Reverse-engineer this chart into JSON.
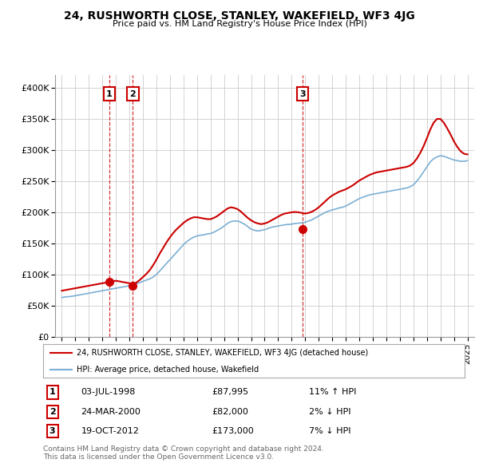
{
  "title": "24, RUSHWORTH CLOSE, STANLEY, WAKEFIELD, WF3 4JG",
  "subtitle": "Price paid vs. HM Land Registry's House Price Index (HPI)",
  "ylim": [
    0,
    420000
  ],
  "yticks": [
    0,
    50000,
    100000,
    150000,
    200000,
    250000,
    300000,
    350000,
    400000
  ],
  "ytick_labels": [
    "£0",
    "£50K",
    "£100K",
    "£150K",
    "£200K",
    "£250K",
    "£300K",
    "£350K",
    "£400K"
  ],
  "xlim_start": 1994.5,
  "xlim_end": 2025.5,
  "sales": [
    {
      "num": 1,
      "year": 1998.5,
      "price": 87995,
      "label": "03-JUL-1998",
      "price_str": "£87,995",
      "pct": "11% ↑ HPI"
    },
    {
      "num": 2,
      "year": 2000.25,
      "price": 82000,
      "label": "24-MAR-2000",
      "price_str": "£82,000",
      "pct": "2% ↓ HPI"
    },
    {
      "num": 3,
      "year": 2012.8,
      "price": 173000,
      "label": "19-OCT-2012",
      "price_str": "£173,000",
      "pct": "7% ↓ HPI"
    }
  ],
  "red_line_color": "#cc0000",
  "blue_line_color": "#7bafd4",
  "legend_label_red": "24, RUSHWORTH CLOSE, STANLEY, WAKEFIELD, WF3 4JG (detached house)",
  "legend_label_blue": "HPI: Average price, detached house, Wakefield",
  "footnote": "Contains HM Land Registry data © Crown copyright and database right 2024.\nThis data is licensed under the Open Government Licence v3.0.",
  "background_color": "#ffffff",
  "grid_color": "#cccccc",
  "hpi_years": [
    1995.0,
    1995.25,
    1995.5,
    1995.75,
    1996.0,
    1996.25,
    1996.5,
    1996.75,
    1997.0,
    1997.25,
    1997.5,
    1997.75,
    1998.0,
    1998.25,
    1998.5,
    1998.75,
    1999.0,
    1999.25,
    1999.5,
    1999.75,
    2000.0,
    2000.25,
    2000.5,
    2000.75,
    2001.0,
    2001.25,
    2001.5,
    2001.75,
    2002.0,
    2002.25,
    2002.5,
    2002.75,
    2003.0,
    2003.25,
    2003.5,
    2003.75,
    2004.0,
    2004.25,
    2004.5,
    2004.75,
    2005.0,
    2005.25,
    2005.5,
    2005.75,
    2006.0,
    2006.25,
    2006.5,
    2006.75,
    2007.0,
    2007.25,
    2007.5,
    2007.75,
    2008.0,
    2008.25,
    2008.5,
    2008.75,
    2009.0,
    2009.25,
    2009.5,
    2009.75,
    2010.0,
    2010.25,
    2010.5,
    2010.75,
    2011.0,
    2011.25,
    2011.5,
    2011.75,
    2012.0,
    2012.25,
    2012.5,
    2012.75,
    2013.0,
    2013.25,
    2013.5,
    2013.75,
    2014.0,
    2014.25,
    2014.5,
    2014.75,
    2015.0,
    2015.25,
    2015.5,
    2015.75,
    2016.0,
    2016.25,
    2016.5,
    2016.75,
    2017.0,
    2017.25,
    2017.5,
    2017.75,
    2018.0,
    2018.25,
    2018.5,
    2018.75,
    2019.0,
    2019.25,
    2019.5,
    2019.75,
    2020.0,
    2020.25,
    2020.5,
    2020.75,
    2021.0,
    2021.25,
    2021.5,
    2021.75,
    2022.0,
    2022.25,
    2022.5,
    2022.75,
    2023.0,
    2023.25,
    2023.5,
    2023.75,
    2024.0,
    2024.25,
    2024.5,
    2024.75,
    2025.0
  ],
  "hpi_values": [
    63000,
    64000,
    64500,
    65000,
    66000,
    67000,
    68000,
    69000,
    70000,
    71000,
    72000,
    73000,
    74000,
    75000,
    76000,
    77000,
    78000,
    79000,
    80000,
    81000,
    82000,
    83000,
    85000,
    87000,
    89000,
    91000,
    93000,
    96000,
    100000,
    106000,
    112000,
    118000,
    124000,
    130000,
    136000,
    142000,
    148000,
    153000,
    157000,
    160000,
    162000,
    163000,
    164000,
    165000,
    166000,
    168000,
    171000,
    174000,
    178000,
    182000,
    185000,
    186000,
    186000,
    184000,
    181000,
    177000,
    173000,
    171000,
    170000,
    171000,
    172000,
    174000,
    176000,
    177000,
    178000,
    179000,
    180000,
    180500,
    181000,
    182000,
    182500,
    183000,
    184000,
    186000,
    188000,
    191000,
    194000,
    197000,
    200000,
    202000,
    204000,
    205000,
    207000,
    208000,
    210000,
    213000,
    216000,
    219000,
    222000,
    224000,
    226000,
    228000,
    229000,
    230000,
    231000,
    232000,
    233000,
    234000,
    235000,
    236000,
    237000,
    238000,
    239000,
    241000,
    244000,
    250000,
    257000,
    265000,
    273000,
    281000,
    286000,
    289000,
    291000,
    290000,
    288000,
    286000,
    284000,
    283000,
    282000,
    282000,
    283000
  ],
  "price_line_years": [
    1995.0,
    1995.25,
    1995.5,
    1995.75,
    1996.0,
    1996.25,
    1996.5,
    1996.75,
    1997.0,
    1997.25,
    1997.5,
    1997.75,
    1998.0,
    1998.25,
    1998.5,
    1998.75,
    1999.0,
    1999.25,
    1999.5,
    1999.75,
    2000.0,
    2000.25,
    2000.5,
    2000.75,
    2001.0,
    2001.25,
    2001.5,
    2001.75,
    2002.0,
    2002.25,
    2002.5,
    2002.75,
    2003.0,
    2003.25,
    2003.5,
    2003.75,
    2004.0,
    2004.25,
    2004.5,
    2004.75,
    2005.0,
    2005.25,
    2005.5,
    2005.75,
    2006.0,
    2006.25,
    2006.5,
    2006.75,
    2007.0,
    2007.25,
    2007.5,
    2007.75,
    2008.0,
    2008.25,
    2008.5,
    2008.75,
    2009.0,
    2009.25,
    2009.5,
    2009.75,
    2010.0,
    2010.25,
    2010.5,
    2010.75,
    2011.0,
    2011.25,
    2011.5,
    2011.75,
    2012.0,
    2012.25,
    2012.5,
    2012.75,
    2013.0,
    2013.25,
    2013.5,
    2013.75,
    2014.0,
    2014.25,
    2014.5,
    2014.75,
    2015.0,
    2015.25,
    2015.5,
    2015.75,
    2016.0,
    2016.25,
    2016.5,
    2016.75,
    2017.0,
    2017.25,
    2017.5,
    2017.75,
    2018.0,
    2018.25,
    2018.5,
    2018.75,
    2019.0,
    2019.25,
    2019.5,
    2019.75,
    2020.0,
    2020.25,
    2020.5,
    2020.75,
    2021.0,
    2021.25,
    2021.5,
    2021.75,
    2022.0,
    2022.25,
    2022.5,
    2022.75,
    2023.0,
    2023.25,
    2023.5,
    2023.75,
    2024.0,
    2024.25,
    2024.5,
    2024.75,
    2025.0
  ],
  "price_line_values": [
    74000,
    75000,
    76000,
    77000,
    78000,
    79000,
    80000,
    81000,
    82000,
    83000,
    84000,
    85000,
    86000,
    87000,
    88000,
    89000,
    90000,
    89000,
    88000,
    87000,
    86000,
    85000,
    87000,
    91000,
    96000,
    101000,
    107000,
    115000,
    124000,
    134000,
    143000,
    152000,
    160000,
    167000,
    173000,
    178000,
    183000,
    187000,
    190000,
    192000,
    192000,
    191000,
    190000,
    189000,
    189000,
    191000,
    194000,
    198000,
    202000,
    206000,
    208000,
    207000,
    205000,
    201000,
    196000,
    191000,
    187000,
    184000,
    182000,
    181000,
    182000,
    184000,
    187000,
    190000,
    193000,
    196000,
    198000,
    199000,
    200000,
    200500,
    200000,
    199000,
    198000,
    199000,
    201000,
    204000,
    208000,
    213000,
    218000,
    223000,
    227000,
    230000,
    233000,
    235000,
    237000,
    240000,
    243000,
    247000,
    251000,
    254000,
    257000,
    260000,
    262000,
    264000,
    265000,
    266000,
    267000,
    268000,
    269000,
    270000,
    271000,
    272000,
    273000,
    275000,
    279000,
    286000,
    295000,
    306000,
    319000,
    333000,
    344000,
    350000,
    350000,
    344000,
    335000,
    325000,
    314000,
    305000,
    298000,
    294000,
    293000
  ]
}
